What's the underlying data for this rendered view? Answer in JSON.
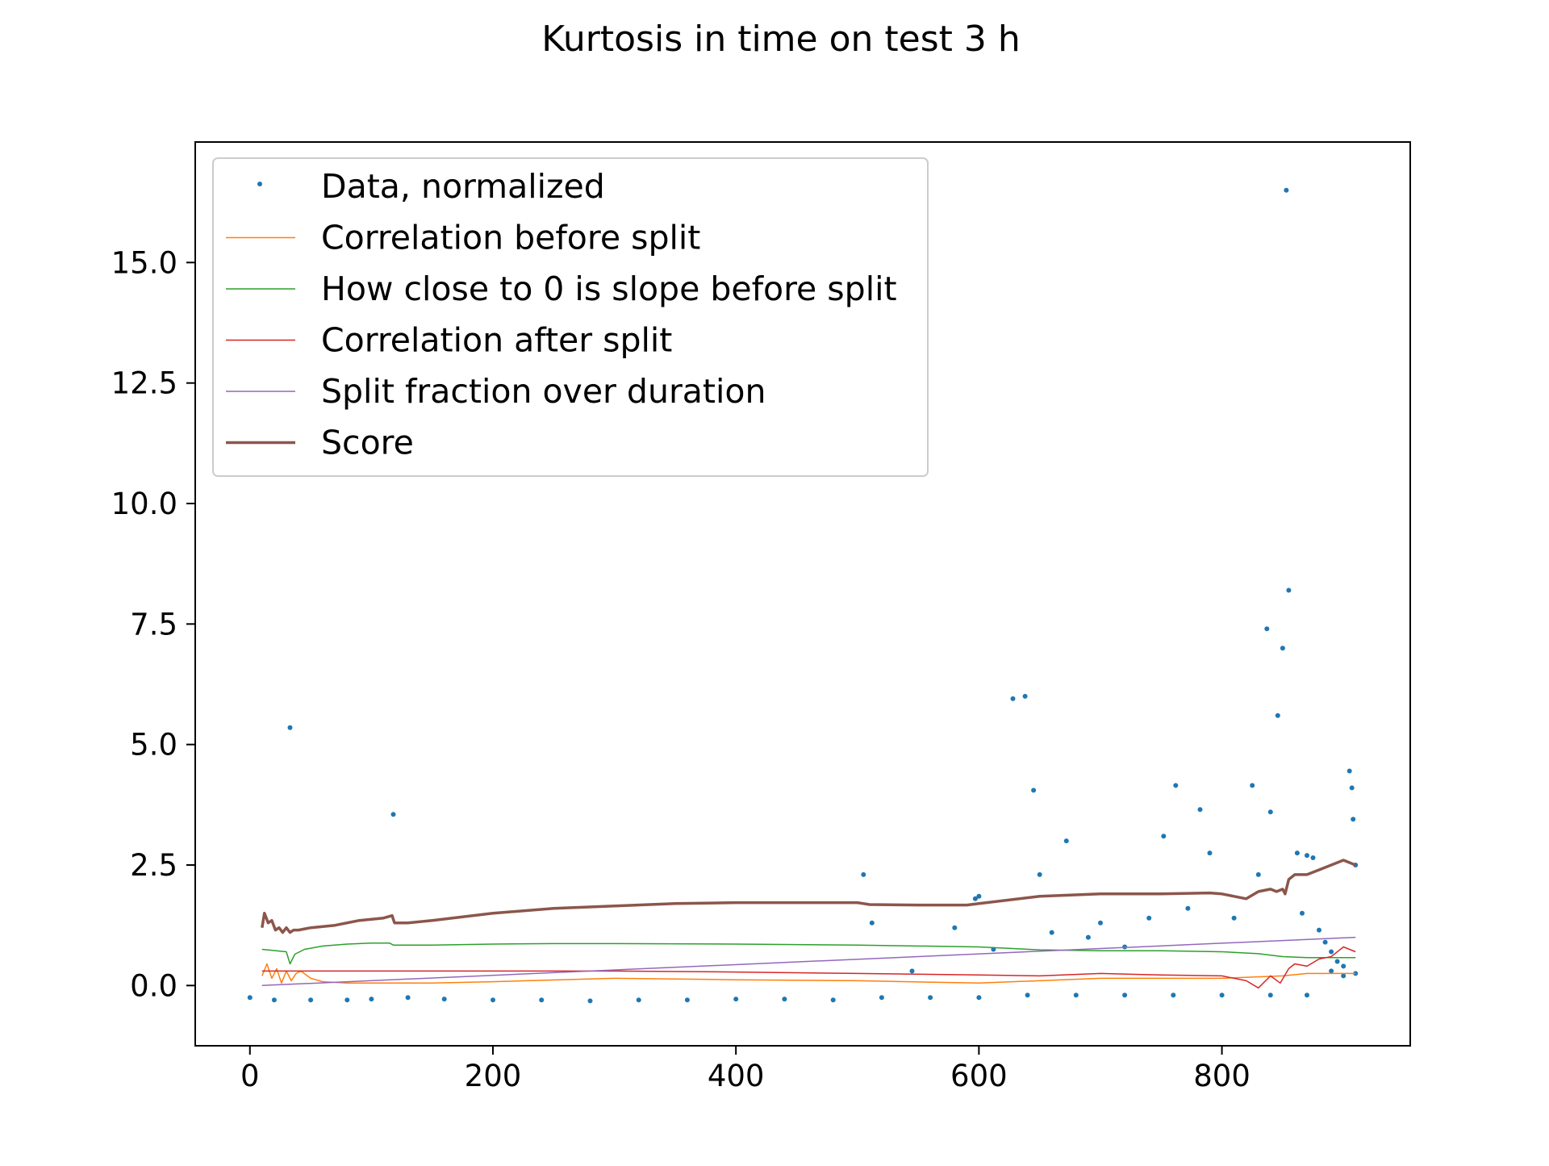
{
  "chart_data": {
    "type": "line",
    "title": "Kurtosis in time on test 3 h",
    "xlabel": "",
    "ylabel": "",
    "xlim": [
      -45,
      955
    ],
    "ylim": [
      -1.25,
      17.5
    ],
    "x_ticks": [
      0,
      200,
      400,
      600,
      800
    ],
    "x_tick_labels": [
      "0",
      "200",
      "400",
      "600",
      "800"
    ],
    "y_ticks": [
      0.0,
      2.5,
      5.0,
      7.5,
      10.0,
      12.5,
      15.0
    ],
    "y_tick_labels": [
      "0.0",
      "2.5",
      "5.0",
      "7.5",
      "10.0",
      "12.5",
      "15.0"
    ],
    "grid": false,
    "legend_position": "top-left",
    "series": [
      {
        "name": "Data, normalized",
        "style": "scatter",
        "color": "#1f77b4",
        "x": [
          0,
          20,
          50,
          80,
          100,
          130,
          160,
          200,
          240,
          280,
          320,
          360,
          400,
          440,
          480,
          520,
          560,
          600,
          640,
          680,
          720,
          760,
          800,
          840,
          870,
          890,
          900,
          910,
          33,
          118,
          505,
          512,
          545,
          580,
          597,
          600,
          612,
          628,
          638,
          645,
          650,
          660,
          672,
          690,
          700,
          720,
          740,
          752,
          762,
          772,
          782,
          790,
          810,
          825,
          830,
          837,
          840,
          846,
          850,
          853,
          855,
          862,
          866,
          870,
          875,
          880,
          885,
          890,
          895,
          900,
          905,
          907,
          908,
          910
        ],
        "y": [
          -0.25,
          -0.3,
          -0.3,
          -0.3,
          -0.28,
          -0.25,
          -0.28,
          -0.3,
          -0.3,
          -0.32,
          -0.3,
          -0.3,
          -0.28,
          -0.28,
          -0.3,
          -0.25,
          -0.25,
          -0.25,
          -0.2,
          -0.2,
          -0.2,
          -0.2,
          -0.2,
          -0.2,
          -0.2,
          0.3,
          0.2,
          0.25,
          5.35,
          3.55,
          2.3,
          1.3,
          0.3,
          1.2,
          1.8,
          1.85,
          0.75,
          5.95,
          6.0,
          4.05,
          2.3,
          1.1,
          3.0,
          1.0,
          1.3,
          0.8,
          1.4,
          3.1,
          4.15,
          1.6,
          3.65,
          2.75,
          1.4,
          4.15,
          2.3,
          7.4,
          3.6,
          5.6,
          7.0,
          16.5,
          8.2,
          2.75,
          1.5,
          2.7,
          2.65,
          1.15,
          0.9,
          0.7,
          0.5,
          0.4,
          4.45,
          4.1,
          3.45,
          2.5
        ]
      },
      {
        "name": "Correlation before split",
        "style": "line",
        "color": "#ff7f0e",
        "x": [
          10,
          14,
          18,
          22,
          26,
          30,
          34,
          38,
          42,
          50,
          60,
          80,
          100,
          150,
          200,
          300,
          400,
          500,
          600,
          700,
          800,
          850,
          870,
          910
        ],
        "y": [
          0.2,
          0.45,
          0.15,
          0.35,
          0.05,
          0.3,
          0.1,
          0.25,
          0.3,
          0.15,
          0.08,
          0.05,
          0.05,
          0.05,
          0.08,
          0.15,
          0.12,
          0.1,
          0.05,
          0.15,
          0.15,
          0.2,
          0.25,
          0.25
        ]
      },
      {
        "name": "How close to 0 is slope before split",
        "style": "line",
        "color": "#2ca02c",
        "x": [
          10,
          30,
          33,
          37,
          45,
          60,
          80,
          100,
          115,
          118,
          150,
          200,
          250,
          300,
          400,
          500,
          600,
          650,
          700,
          750,
          800,
          830,
          850,
          870,
          910
        ],
        "y": [
          0.75,
          0.7,
          0.45,
          0.65,
          0.75,
          0.82,
          0.86,
          0.88,
          0.88,
          0.84,
          0.84,
          0.86,
          0.87,
          0.87,
          0.86,
          0.84,
          0.8,
          0.74,
          0.72,
          0.72,
          0.7,
          0.66,
          0.6,
          0.58,
          0.58
        ]
      },
      {
        "name": "Correlation after split",
        "style": "line",
        "color": "#d62728",
        "x": [
          10,
          50,
          100,
          200,
          300,
          400,
          500,
          600,
          650,
          700,
          750,
          800,
          820,
          830,
          840,
          848,
          855,
          860,
          870,
          880,
          890,
          900,
          910
        ],
        "y": [
          0.3,
          0.3,
          0.3,
          0.3,
          0.3,
          0.28,
          0.25,
          0.22,
          0.2,
          0.25,
          0.22,
          0.2,
          0.1,
          -0.05,
          0.2,
          0.05,
          0.35,
          0.45,
          0.4,
          0.55,
          0.6,
          0.8,
          0.7
        ]
      },
      {
        "name": "Split fraction over duration",
        "style": "line",
        "color": "#9467bd",
        "x": [
          10,
          910
        ],
        "y": [
          0.0,
          1.0
        ]
      },
      {
        "name": "Score",
        "style": "line",
        "color": "#8c564b",
        "x": [
          10,
          12,
          15,
          18,
          21,
          24,
          27,
          30,
          33,
          36,
          40,
          50,
          70,
          90,
          110,
          117,
          119,
          130,
          150,
          200,
          250,
          300,
          350,
          400,
          450,
          500,
          505,
          510,
          550,
          590,
          600,
          650,
          700,
          750,
          790,
          800,
          810,
          820,
          830,
          840,
          845,
          850,
          852,
          855,
          860,
          870,
          880,
          890,
          900,
          910
        ],
        "y": [
          1.2,
          1.5,
          1.3,
          1.35,
          1.15,
          1.2,
          1.1,
          1.2,
          1.1,
          1.15,
          1.15,
          1.2,
          1.25,
          1.35,
          1.4,
          1.45,
          1.3,
          1.3,
          1.35,
          1.5,
          1.6,
          1.65,
          1.7,
          1.72,
          1.72,
          1.72,
          1.7,
          1.68,
          1.67,
          1.67,
          1.7,
          1.85,
          1.9,
          1.9,
          1.92,
          1.9,
          1.85,
          1.8,
          1.95,
          2.0,
          1.95,
          2.0,
          1.9,
          2.2,
          2.3,
          2.3,
          2.4,
          2.5,
          2.6,
          2.5
        ]
      }
    ]
  }
}
